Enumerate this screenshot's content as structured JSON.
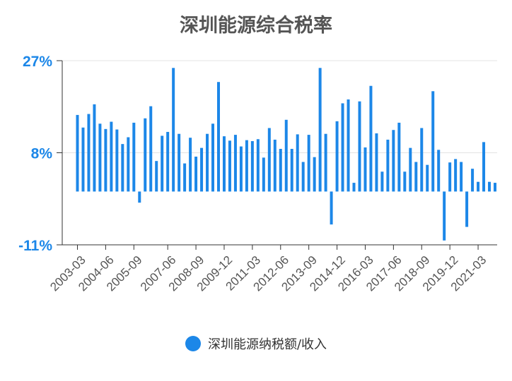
{
  "chart_data": {
    "type": "bar",
    "title": "深圳能源综合税率",
    "ylim": [
      -11,
      27
    ],
    "yticks": [
      -11,
      8,
      27
    ],
    "ytick_labels": [
      "-11%",
      "8%",
      "27%"
    ],
    "xtick_labels": [
      "2003-03",
      "2004-06",
      "2005-09",
      "2007-06",
      "2008-09",
      "2009-12",
      "2011-03",
      "2012-06",
      "2013-09",
      "2014-12",
      "2016-03",
      "2017-06",
      "2018-09",
      "2019-12",
      "2021-03"
    ],
    "xtick_indices": [
      0,
      5,
      10,
      16,
      21,
      26,
      31,
      36,
      41,
      46,
      51,
      56,
      61,
      66,
      71
    ],
    "grid": true,
    "legend": "bottom",
    "color": "#1c87e8",
    "series": [
      {
        "name": "深圳能源纳税额/收入",
        "values": [
          15.8,
          13.2,
          16,
          18,
          14,
          12.9,
          14.4,
          12.8,
          9.8,
          11.2,
          14.2,
          -2.3,
          15.1,
          17.6,
          6.3,
          11.5,
          12.3,
          25.5,
          11.9,
          5.8,
          11.1,
          7.2,
          9,
          11.9,
          14,
          22.6,
          11.4,
          10.5,
          11.7,
          9.3,
          10.6,
          10.4,
          10.8,
          7,
          13.1,
          10.7,
          8.8,
          14.8,
          8.8,
          11.8,
          6.1,
          11.7,
          7.1,
          25.5,
          11.9,
          -6.8,
          14.5,
          18.2,
          19,
          1.8,
          18.6,
          9.1,
          21.8,
          12,
          4.1,
          10.7,
          12.7,
          14.2,
          4.1,
          9,
          6.1,
          13.1,
          5.5,
          20.7,
          8.6,
          -10.1,
          6,
          6.7,
          6.1,
          -7.3,
          4.7,
          2,
          10.2,
          2,
          1.8
        ]
      }
    ]
  }
}
